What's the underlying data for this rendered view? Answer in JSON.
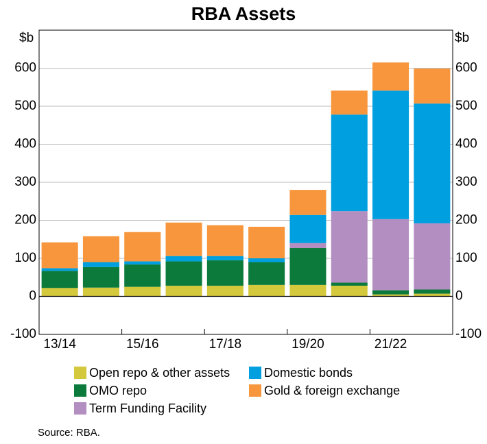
{
  "chart_data": {
    "type": "stacked_bar",
    "title": "RBA Assets",
    "y_unit": "$b",
    "source": "Source:  RBA.",
    "categories": [
      "13/14",
      null,
      "15/16",
      null,
      "17/18",
      null,
      "19/20",
      null,
      "21/22",
      null
    ],
    "series": [
      {
        "name": "Open repo & other assets",
        "color": "#d4c83c",
        "values": [
          22,
          23,
          25,
          28,
          28,
          30,
          30,
          28,
          5,
          7
        ]
      },
      {
        "name": "OMO repo",
        "color": "#0b7a3b",
        "values": [
          45,
          54,
          59,
          64,
          67,
          60,
          97,
          8,
          11,
          11
        ]
      },
      {
        "name": "Term Funding Facility",
        "color": "#b38fc1",
        "values": [
          0,
          0,
          0,
          0,
          0,
          0,
          13,
          188,
          187,
          174
        ]
      },
      {
        "name": "Domestic bonds",
        "color": "#009fdf",
        "values": [
          7,
          13,
          8,
          14,
          11,
          10,
          74,
          254,
          338,
          315
        ]
      },
      {
        "name": "Gold & foreign exchange",
        "color": "#f7963c",
        "values": [
          68,
          68,
          77,
          88,
          81,
          83,
          66,
          63,
          74,
          92
        ]
      }
    ],
    "ylim": [
      -100,
      700
    ],
    "yticks": [
      -100,
      0,
      100,
      200,
      300,
      400,
      500,
      600
    ],
    "grid": true
  }
}
